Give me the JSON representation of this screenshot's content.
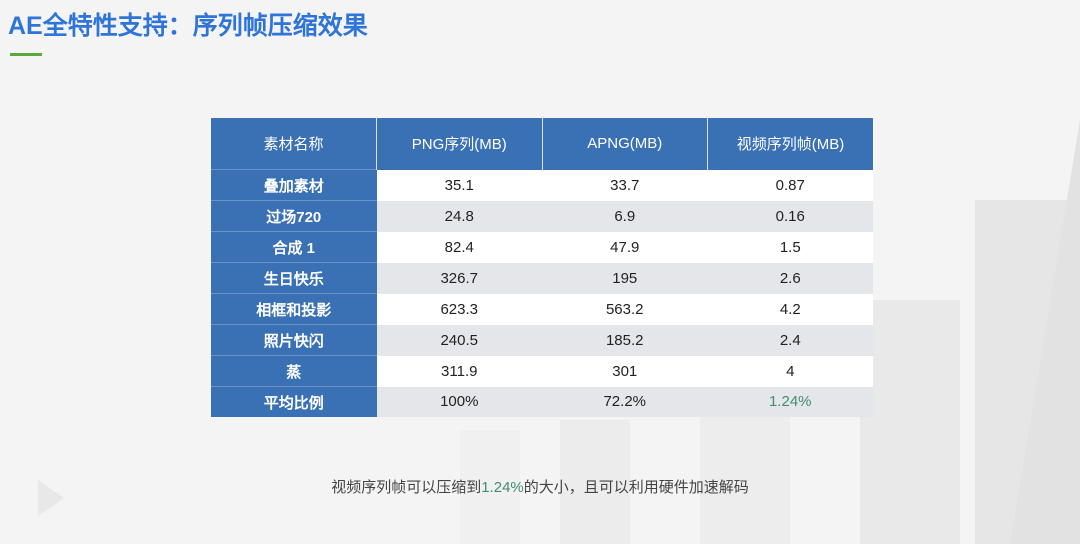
{
  "slide": {
    "title": "AE全特性支持：序列帧压缩效果"
  },
  "table": {
    "headers": [
      "素材名称",
      "PNG序列(MB)",
      "APNG(MB)",
      "视频序列帧(MB)"
    ],
    "rows": [
      {
        "name": "叠加素材",
        "png": "35.1",
        "apng": "33.7",
        "video": "0.87"
      },
      {
        "name": "过场720",
        "png": "24.8",
        "apng": "6.9",
        "video": "0.16"
      },
      {
        "name": "合成 1",
        "png": "82.4",
        "apng": "47.9",
        "video": "1.5"
      },
      {
        "name": "生日快乐",
        "png": "326.7",
        "apng": "195",
        "video": "2.6"
      },
      {
        "name": "相框和投影",
        "png": "623.3",
        "apng": "563.2",
        "video": "4.2"
      },
      {
        "name": "照片快闪",
        "png": "240.5",
        "apng": "185.2",
        "video": "2.4"
      },
      {
        "name": "蒸",
        "png": "311.9",
        "apng": "301",
        "video": "4"
      },
      {
        "name": "平均比例",
        "png": "100%",
        "apng": "72.2%",
        "video": "1.24%"
      }
    ]
  },
  "caption": {
    "before": "视频序列帧可以压缩到",
    "highlight": "1.24%",
    "after": "的大小，且可以利用硬件加速解码"
  },
  "colors": {
    "title": "#2f74d8",
    "accent_green": "#5aa83b",
    "table_header": "#3a70b4",
    "highlight": "#3f8f70"
  }
}
